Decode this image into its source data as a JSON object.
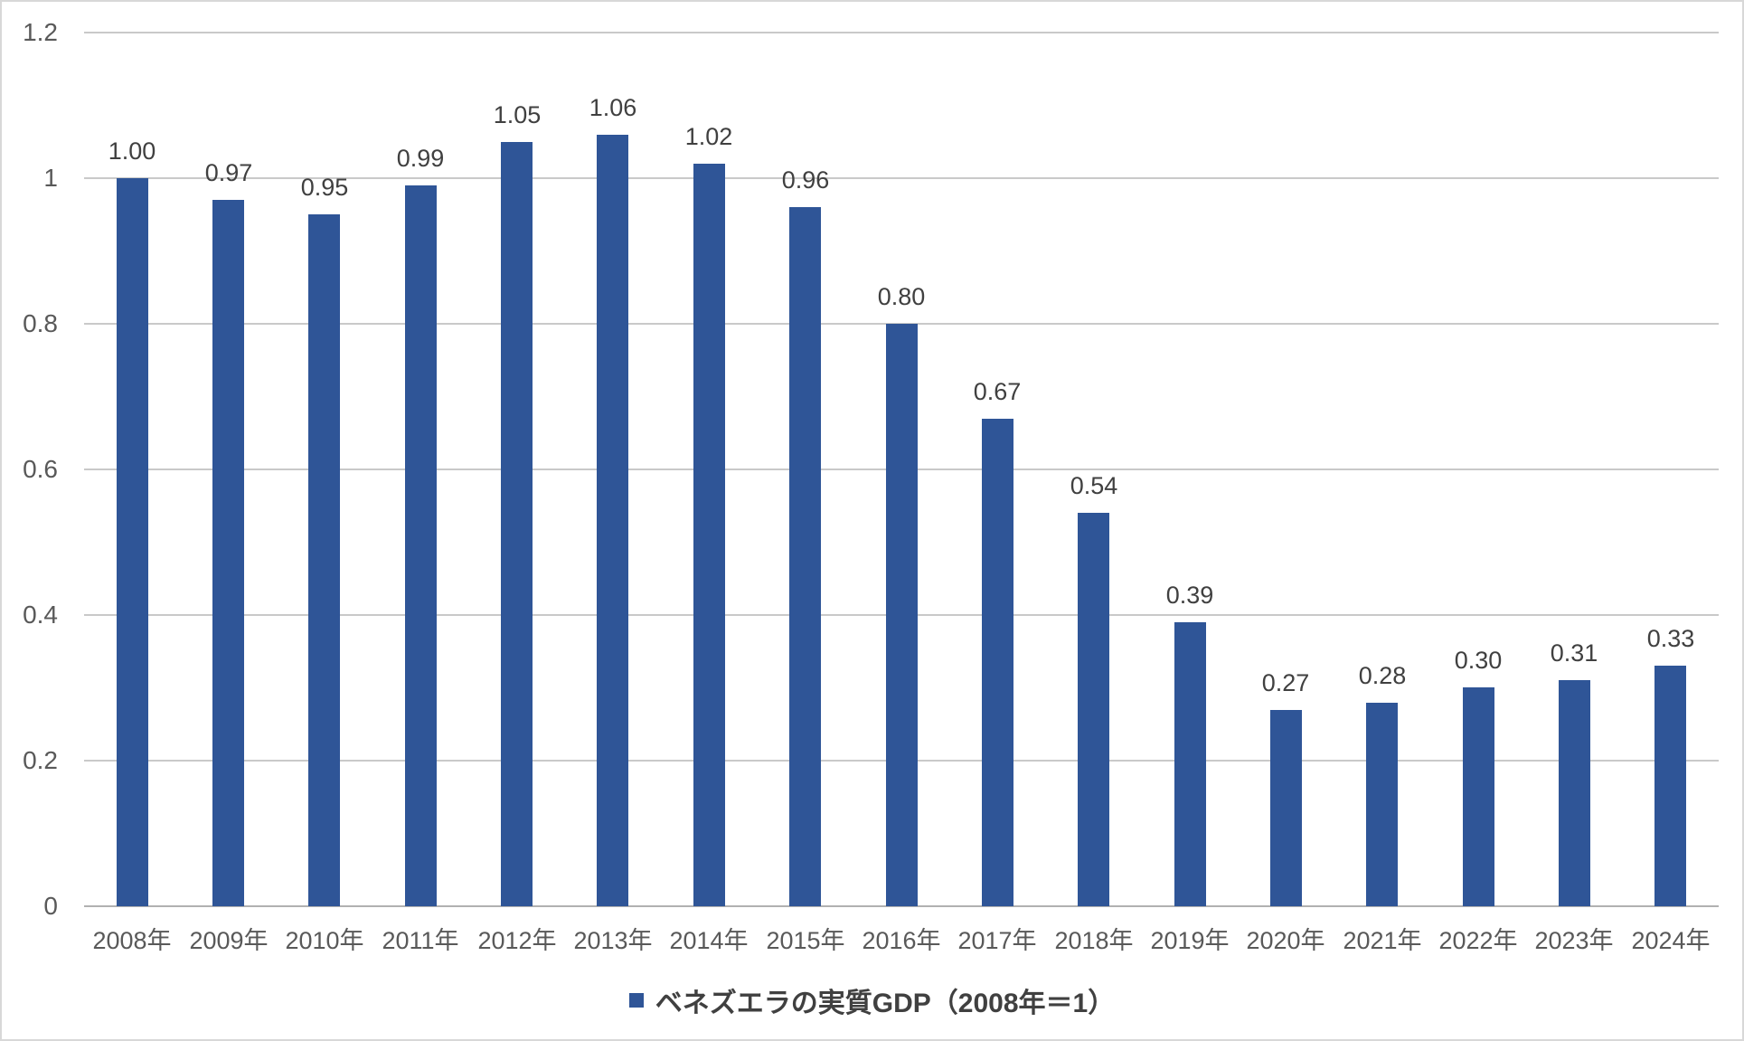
{
  "chart_data": {
    "type": "bar",
    "title": "",
    "categories": [
      "2008年",
      "2009年",
      "2010年",
      "2011年",
      "2012年",
      "2013年",
      "2014年",
      "2015年",
      "2016年",
      "2017年",
      "2018年",
      "2019年",
      "2020年",
      "2021年",
      "2022年",
      "2023年",
      "2024年"
    ],
    "values": [
      1.0,
      0.97,
      0.95,
      0.99,
      1.05,
      1.06,
      1.02,
      0.96,
      0.8,
      0.67,
      0.54,
      0.39,
      0.27,
      0.28,
      0.3,
      0.31,
      0.33
    ],
    "value_labels": [
      "1.00",
      "0.97",
      "0.95",
      "0.99",
      "1.05",
      "1.06",
      "1.02",
      "0.96",
      "0.80",
      "0.67",
      "0.54",
      "0.39",
      "0.27",
      "0.28",
      "0.30",
      "0.31",
      "0.33"
    ],
    "xlabel": "",
    "ylabel": "",
    "ylim": [
      0,
      1.2
    ],
    "y_ticks": [
      {
        "label": "1.2",
        "value": 1.2
      },
      {
        "label": "1",
        "value": 1.0
      },
      {
        "label": "0.8",
        "value": 0.8
      },
      {
        "label": "0.6",
        "value": 0.6
      },
      {
        "label": "0.4",
        "value": 0.4
      },
      {
        "label": "0.2",
        "value": 0.2
      },
      {
        "label": "0",
        "value": 0.0
      }
    ],
    "grid": true,
    "legend_position": "bottom",
    "legend": {
      "label": "ベネズエラの実質GDP（2008年＝1）",
      "marker": "square-icon"
    },
    "colors": {
      "bar": "#2f5597",
      "gridline": "#c9c9c9",
      "axis_line": "#b1b1b1",
      "tick_label": "#595959",
      "value_label": "#404040",
      "legend_text": "#404040",
      "frame_border": "#d8d8d8"
    }
  }
}
